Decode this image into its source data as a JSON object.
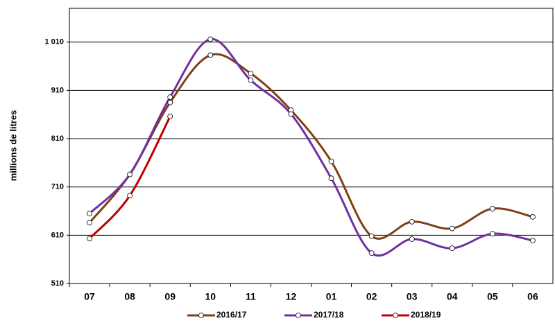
{
  "chart_data": {
    "type": "line",
    "y_label": "millions de litres",
    "categories": [
      "07",
      "08",
      "09",
      "10",
      "11",
      "12",
      "01",
      "02",
      "03",
      "04",
      "05",
      "06"
    ],
    "series": [
      {
        "name": "2016/17",
        "color": "#7f3f16",
        "values": [
          636,
          736,
          885,
          983,
          945,
          869,
          763,
          608,
          638,
          624,
          665,
          648
        ]
      },
      {
        "name": "2017/18",
        "color": "#7030a0",
        "values": [
          655,
          736,
          896,
          1016,
          931,
          861,
          728,
          573,
          602,
          583,
          613,
          599
        ]
      },
      {
        "name": "2018/19",
        "color": "#c00000",
        "values": [
          603,
          692,
          856,
          null,
          null,
          null,
          null,
          null,
          null,
          null,
          null,
          null
        ]
      }
    ],
    "ylim": [
      510,
      1080
    ],
    "yticks": [
      510,
      610,
      710,
      810,
      910,
      {
        "value": 1010,
        "label": "1 010"
      }
    ],
    "grid": true,
    "legend": "bottom"
  }
}
